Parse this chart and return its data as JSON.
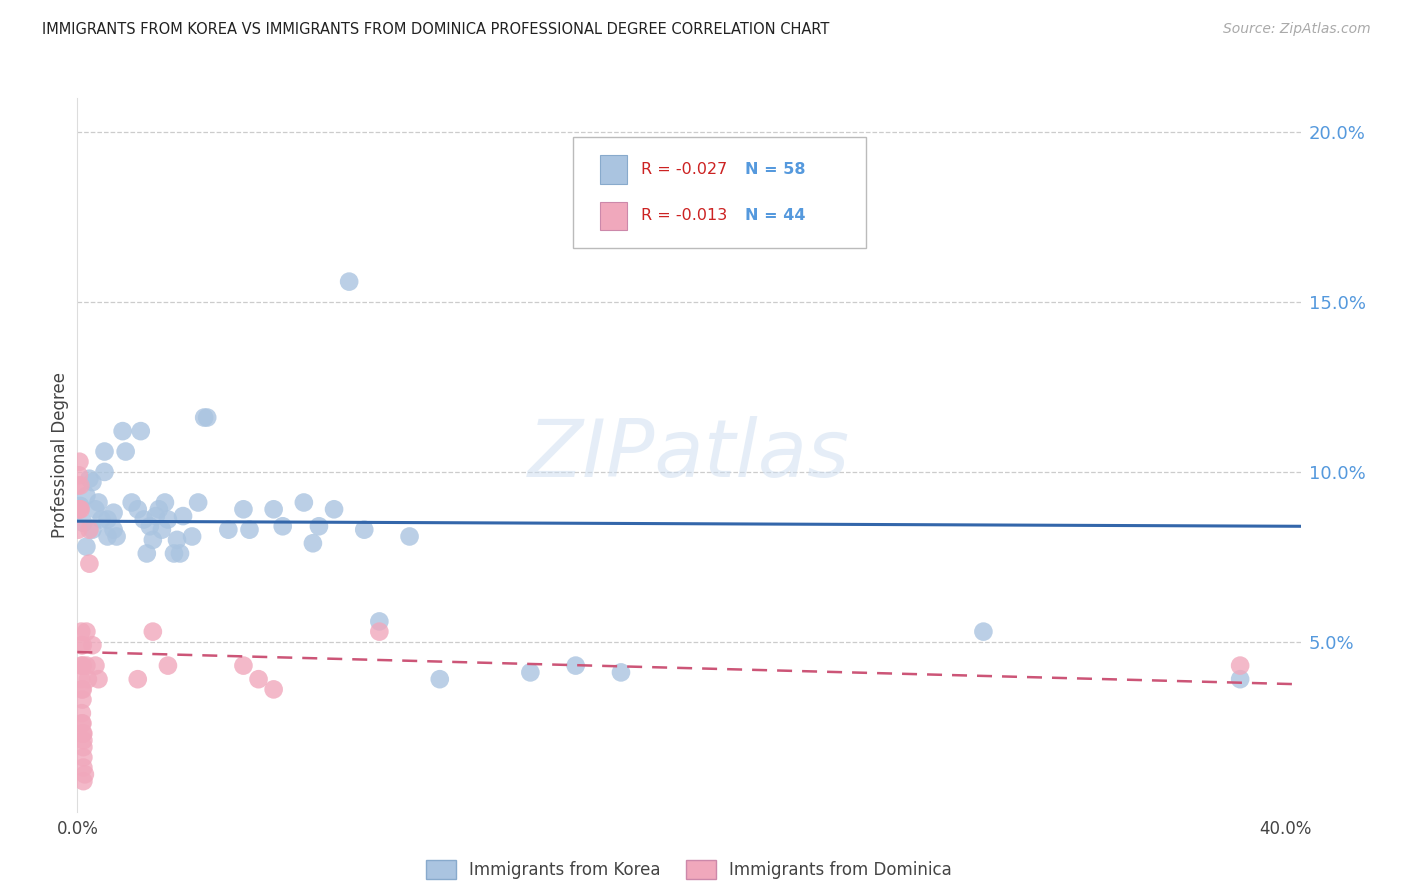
{
  "title": "IMMIGRANTS FROM KOREA VS IMMIGRANTS FROM DOMINICA PROFESSIONAL DEGREE CORRELATION CHART",
  "source": "Source: ZipAtlas.com",
  "ylabel": "Professional Degree",
  "watermark": "ZIPatlas",
  "legend_korea_R": "-0.027",
  "legend_korea_N": "58",
  "legend_dominica_R": "-0.013",
  "legend_dominica_N": "44",
  "korea_color": "#aac4e0",
  "dominica_color": "#f0a8bc",
  "korea_line_color": "#3366aa",
  "dominica_line_color": "#cc5577",
  "title_color": "#222222",
  "source_color": "#aaaaaa",
  "right_axis_color": "#5599dd",
  "grid_color": "#cccccc",
  "korea_scatter": [
    [
      0.001,
      0.09
    ],
    [
      0.002,
      0.085
    ],
    [
      0.003,
      0.093
    ],
    [
      0.003,
      0.078
    ],
    [
      0.004,
      0.098
    ],
    [
      0.005,
      0.097
    ],
    [
      0.005,
      0.083
    ],
    [
      0.006,
      0.089
    ],
    [
      0.007,
      0.091
    ],
    [
      0.008,
      0.086
    ],
    [
      0.009,
      0.1
    ],
    [
      0.009,
      0.106
    ],
    [
      0.01,
      0.086
    ],
    [
      0.01,
      0.081
    ],
    [
      0.012,
      0.088
    ],
    [
      0.012,
      0.083
    ],
    [
      0.013,
      0.081
    ],
    [
      0.015,
      0.112
    ],
    [
      0.016,
      0.106
    ],
    [
      0.018,
      0.091
    ],
    [
      0.02,
      0.089
    ],
    [
      0.021,
      0.112
    ],
    [
      0.022,
      0.086
    ],
    [
      0.023,
      0.076
    ],
    [
      0.024,
      0.084
    ],
    [
      0.025,
      0.08
    ],
    [
      0.026,
      0.087
    ],
    [
      0.027,
      0.089
    ],
    [
      0.028,
      0.083
    ],
    [
      0.029,
      0.091
    ],
    [
      0.03,
      0.086
    ],
    [
      0.032,
      0.076
    ],
    [
      0.033,
      0.08
    ],
    [
      0.034,
      0.076
    ],
    [
      0.035,
      0.087
    ],
    [
      0.038,
      0.081
    ],
    [
      0.04,
      0.091
    ],
    [
      0.042,
      0.116
    ],
    [
      0.043,
      0.116
    ],
    [
      0.05,
      0.083
    ],
    [
      0.055,
      0.089
    ],
    [
      0.057,
      0.083
    ],
    [
      0.065,
      0.089
    ],
    [
      0.068,
      0.084
    ],
    [
      0.075,
      0.091
    ],
    [
      0.078,
      0.079
    ],
    [
      0.08,
      0.084
    ],
    [
      0.085,
      0.089
    ],
    [
      0.09,
      0.156
    ],
    [
      0.095,
      0.083
    ],
    [
      0.1,
      0.056
    ],
    [
      0.11,
      0.081
    ],
    [
      0.12,
      0.039
    ],
    [
      0.15,
      0.041
    ],
    [
      0.165,
      0.043
    ],
    [
      0.18,
      0.041
    ],
    [
      0.3,
      0.053
    ],
    [
      0.385,
      0.039
    ]
  ],
  "dominica_scatter": [
    [
      0.0003,
      0.096
    ],
    [
      0.0003,
      0.089
    ],
    [
      0.0003,
      0.083
    ],
    [
      0.0005,
      0.099
    ],
    [
      0.0007,
      0.103
    ],
    [
      0.0008,
      0.089
    ],
    [
      0.001,
      0.096
    ],
    [
      0.0011,
      0.089
    ],
    [
      0.0013,
      0.043
    ],
    [
      0.0013,
      0.053
    ],
    [
      0.0013,
      0.049
    ],
    [
      0.0013,
      0.039
    ],
    [
      0.0015,
      0.036
    ],
    [
      0.0015,
      0.029
    ],
    [
      0.0015,
      0.026
    ],
    [
      0.0017,
      0.033
    ],
    [
      0.0017,
      0.026
    ],
    [
      0.0018,
      0.023
    ],
    [
      0.0018,
      0.036
    ],
    [
      0.0018,
      0.043
    ],
    [
      0.0018,
      0.049
    ],
    [
      0.002,
      0.021
    ],
    [
      0.002,
      0.016
    ],
    [
      0.002,
      0.019
    ],
    [
      0.002,
      0.023
    ],
    [
      0.002,
      0.013
    ],
    [
      0.002,
      0.009
    ],
    [
      0.0025,
      0.011
    ],
    [
      0.003,
      0.043
    ],
    [
      0.003,
      0.053
    ],
    [
      0.0035,
      0.039
    ],
    [
      0.004,
      0.083
    ],
    [
      0.004,
      0.073
    ],
    [
      0.005,
      0.049
    ],
    [
      0.006,
      0.043
    ],
    [
      0.007,
      0.039
    ],
    [
      0.02,
      0.039
    ],
    [
      0.025,
      0.053
    ],
    [
      0.03,
      0.043
    ],
    [
      0.055,
      0.043
    ],
    [
      0.06,
      0.039
    ],
    [
      0.065,
      0.036
    ],
    [
      0.1,
      0.053
    ],
    [
      0.385,
      0.043
    ]
  ],
  "xlim": [
    0.0,
    0.405
  ],
  "ylim": [
    0.0,
    0.21
  ],
  "korea_trend_x": [
    0.0,
    0.405
  ],
  "korea_trend_y": [
    0.0855,
    0.084
  ],
  "dominica_trend_x": [
    0.0,
    0.405
  ],
  "dominica_trend_y": [
    0.047,
    0.0375
  ]
}
